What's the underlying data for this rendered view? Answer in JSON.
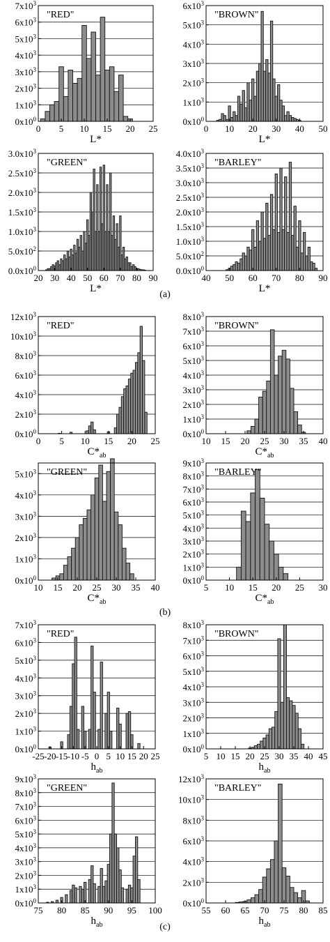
{
  "panel_labels": [
    "(a)",
    "(b)",
    "(c)"
  ],
  "chart_data": [
    {
      "type": "bar",
      "panel": "(a)",
      "title": "\"RED\"",
      "xlabel": "L*",
      "xlabel_sub": "",
      "xlim": [
        0,
        25
      ],
      "xticks": [
        0,
        5,
        10,
        15,
        20,
        25
      ],
      "ylim": [
        0,
        7000
      ],
      "yticks": [
        0,
        1000,
        2000,
        3000,
        4000,
        5000,
        6000,
        7000
      ],
      "ytick_labels": [
        "0x10^0",
        "1x10^3",
        "2x10^3",
        "3x10^3",
        "4x10^3",
        "5x10^3",
        "6x10^3",
        "7x10^3"
      ],
      "bin_width": 1,
      "x": [
        1,
        2,
        3,
        4,
        5,
        6,
        7,
        8,
        9,
        10,
        11,
        12,
        13,
        14,
        15,
        16,
        17,
        18,
        19,
        20
      ],
      "values": [
        150,
        600,
        1000,
        1200,
        3300,
        1500,
        3100,
        2300,
        2600,
        5800,
        3800,
        5400,
        2800,
        6300,
        3100,
        3300,
        1800,
        2800,
        300,
        150
      ]
    },
    {
      "type": "bar",
      "panel": "(a)",
      "title": "\"BROWN\"",
      "xlabel": "L*",
      "xlabel_sub": "",
      "xlim": [
        0,
        50
      ],
      "xticks": [
        0,
        10,
        20,
        30,
        40,
        50
      ],
      "ylim": [
        0,
        6000
      ],
      "yticks": [
        0,
        1000,
        2000,
        3000,
        4000,
        5000,
        6000
      ],
      "ytick_labels": [
        "0x10^0",
        "1x10^3",
        "2x10^3",
        "3x10^3",
        "4x10^3",
        "5x10^3",
        "6x10^3"
      ],
      "bin_width": 1,
      "x": [
        5,
        6,
        7,
        8,
        9,
        10,
        11,
        12,
        13,
        14,
        15,
        16,
        17,
        18,
        19,
        20,
        21,
        22,
        23,
        24,
        25,
        26,
        27,
        28,
        29,
        30,
        31,
        32,
        33,
        34,
        35,
        36,
        37,
        38,
        39,
        40
      ],
      "values": [
        50,
        100,
        400,
        300,
        100,
        800,
        200,
        500,
        300,
        1300,
        900,
        1600,
        700,
        2000,
        1100,
        2200,
        1300,
        2600,
        3000,
        5700,
        2600,
        3200,
        2500,
        5200,
        2200,
        1300,
        1900,
        1100,
        800,
        300,
        500,
        300,
        200,
        150,
        100,
        50
      ]
    },
    {
      "type": "bar",
      "panel": "(a)",
      "title": "\"GREEN\"",
      "xlabel": "L*",
      "xlabel_sub": "",
      "xlim": [
        20,
        90
      ],
      "xticks": [
        20,
        30,
        40,
        50,
        60,
        70,
        80,
        90
      ],
      "ylim": [
        0,
        3000
      ],
      "yticks": [
        0,
        500,
        1000,
        1500,
        2000,
        2500,
        3000
      ],
      "ytick_labels": [
        "0.0x10^0",
        "5.0x10^2",
        "1.0x10^3",
        "1.5x10^3",
        "2.0x10^3",
        "2.5x10^3",
        "3.0x10^3"
      ],
      "bin_width": 1,
      "x": [
        25,
        26,
        27,
        28,
        29,
        30,
        31,
        32,
        33,
        34,
        35,
        36,
        37,
        38,
        39,
        40,
        41,
        42,
        43,
        44,
        45,
        46,
        47,
        48,
        49,
        50,
        51,
        52,
        53,
        54,
        55,
        56,
        57,
        58,
        59,
        60,
        61,
        62,
        63,
        64,
        65,
        66,
        67,
        68,
        69,
        70,
        71,
        72,
        73,
        74,
        75,
        76,
        77,
        78,
        79,
        80,
        81,
        82,
        83,
        84,
        85
      ],
      "values": [
        20,
        50,
        50,
        100,
        150,
        120,
        200,
        250,
        150,
        300,
        250,
        400,
        300,
        500,
        350,
        550,
        400,
        650,
        450,
        800,
        600,
        900,
        500,
        1000,
        700,
        1300,
        900,
        2000,
        1500,
        2600,
        1000,
        2200,
        1000,
        2650,
        1200,
        2700,
        1000,
        2200,
        1000,
        2500,
        900,
        1400,
        800,
        1200,
        600,
        1400,
        400,
        600,
        300,
        350,
        200,
        200,
        100,
        150,
        100,
        50,
        50,
        30,
        20,
        20,
        10
      ]
    },
    {
      "type": "bar",
      "panel": "(a)",
      "title": "\"BARLEY\"",
      "xlabel": "L*",
      "xlabel_sub": "",
      "xlim": [
        40,
        90
      ],
      "xticks": [
        40,
        50,
        60,
        70,
        80,
        90
      ],
      "ylim": [
        0,
        4000
      ],
      "yticks": [
        0,
        500,
        1000,
        1500,
        2000,
        2500,
        3000,
        3500,
        4000
      ],
      "ytick_labels": [
        "0.0x10^0",
        "5.0x10^2",
        "1.0x10^3",
        "1.5x10^3",
        "2.0x10^3",
        "2.5x10^3",
        "3.0x10^3",
        "3.5x10^3",
        "4.0x10^3"
      ],
      "bin_width": 1,
      "x": [
        49,
        50,
        51,
        52,
        53,
        54,
        55,
        56,
        57,
        58,
        59,
        60,
        61,
        62,
        63,
        64,
        65,
        66,
        67,
        68,
        69,
        70,
        71,
        72,
        73,
        74,
        75,
        76,
        77,
        78,
        79,
        80,
        81,
        82,
        83,
        84,
        85,
        86,
        87
      ],
      "values": [
        30,
        80,
        150,
        200,
        300,
        250,
        400,
        600,
        500,
        800,
        700,
        1400,
        800,
        1700,
        1000,
        2000,
        1100,
        2300,
        1200,
        2600,
        1400,
        3300,
        1300,
        3500,
        1400,
        3200,
        1300,
        3700,
        1200,
        2200,
        800,
        1700,
        600,
        1300,
        500,
        800,
        300,
        250,
        80
      ]
    },
    {
      "type": "bar",
      "panel": "(b)",
      "title": "\"RED\"",
      "xlabel": "C*",
      "xlabel_sub": "ab",
      "xlim": [
        0,
        25
      ],
      "xticks": [
        0,
        5,
        10,
        15,
        20,
        25
      ],
      "ylim": [
        0,
        12000
      ],
      "yticks": [
        0,
        2000,
        4000,
        6000,
        8000,
        10000,
        12000
      ],
      "ytick_labels": [
        "0x10^0",
        "2x10^3",
        "4x10^3",
        "6x10^3",
        "8x10^3",
        "10x10^3",
        "12x10^3"
      ],
      "bin_width": 0.5,
      "x": [
        4.5,
        7.0,
        10.5,
        11.0,
        11.5,
        12.0,
        15.0,
        16.5,
        17.0,
        17.5,
        18.0,
        18.5,
        19.0,
        19.5,
        20.0,
        20.5,
        21.0,
        21.5,
        22.0,
        22.5,
        23.0
      ],
      "values": [
        40,
        150,
        300,
        800,
        1200,
        400,
        200,
        600,
        2000,
        2700,
        3800,
        4600,
        4900,
        5600,
        6200,
        6500,
        7300,
        8300,
        11000,
        7500,
        2200
      ]
    },
    {
      "type": "bar",
      "panel": "(b)",
      "title": "\"BROWN\"",
      "xlabel": "C*",
      "xlabel_sub": "ab",
      "xlim": [
        10,
        40
      ],
      "xticks": [
        10,
        15,
        20,
        25,
        30,
        35,
        40
      ],
      "ylim": [
        0,
        8000
      ],
      "yticks": [
        0,
        1000,
        2000,
        3000,
        4000,
        5000,
        6000,
        7000,
        8000
      ],
      "ytick_labels": [
        "0x10^0",
        "1x10^3",
        "2x10^3",
        "3x10^3",
        "4x10^3",
        "5x10^3",
        "6x10^3",
        "7x10^3",
        "8x10^3"
      ],
      "bin_width": 1,
      "x": [
        21,
        22,
        23,
        24,
        25,
        26,
        27,
        28,
        29,
        30,
        31,
        32,
        33,
        34,
        35
      ],
      "values": [
        200,
        500,
        1000,
        2500,
        2900,
        3600,
        7100,
        4000,
        5300,
        5700,
        5100,
        3100,
        1500,
        600,
        100
      ]
    },
    {
      "type": "bar",
      "panel": "(b)",
      "title": "\"GREEN\"",
      "xlabel": "C*",
      "xlabel_sub": "ab",
      "xlim": [
        10,
        40
      ],
      "xticks": [
        10,
        15,
        20,
        25,
        30,
        35,
        40
      ],
      "ylim": [
        0,
        5500
      ],
      "yticks": [
        0,
        1000,
        2000,
        3000,
        4000,
        5000
      ],
      "ytick_labels": [
        "0x10^0",
        "1x10^3",
        "2x10^3",
        "3x10^3",
        "4x10^3",
        "5x10^3"
      ],
      "bin_width": 1,
      "x": [
        14,
        15,
        16,
        17,
        18,
        19,
        20,
        21,
        22,
        23,
        24,
        25,
        26,
        27,
        28,
        29,
        30,
        31,
        32,
        33,
        34
      ],
      "values": [
        100,
        200,
        300,
        700,
        1100,
        1500,
        2000,
        2600,
        2900,
        3300,
        4000,
        4800,
        5400,
        3700,
        5100,
        5700,
        3200,
        2600,
        1500,
        800,
        300
      ]
    },
    {
      "type": "bar",
      "panel": "(b)",
      "title": "\"BARLEY\"",
      "xlabel": "C*",
      "xlabel_sub": "ab",
      "xlim": [
        5,
        30
      ],
      "xticks": [
        5,
        10,
        15,
        20,
        25,
        30
      ],
      "ylim": [
        0,
        9000
      ],
      "yticks": [
        0,
        1000,
        2000,
        3000,
        4000,
        5000,
        6000,
        7000,
        8000,
        9000
      ],
      "ytick_labels": [
        "0x10^0",
        "1x10^3",
        "2x10^3",
        "3x10^3",
        "4x10^3",
        "5x10^3",
        "6x10^3",
        "7x10^3",
        "8x10^3",
        "9x10^3"
      ],
      "bin_width": 1,
      "x": [
        12,
        13,
        14,
        15,
        16,
        17,
        18,
        19,
        20,
        21,
        22
      ],
      "values": [
        1000,
        5300,
        4500,
        6700,
        8500,
        6300,
        4300,
        3000,
        2000,
        1000,
        500
      ]
    },
    {
      "type": "bar",
      "panel": "(c)",
      "title": "\"RED\"",
      "xlabel": "h",
      "xlabel_sub": "ab",
      "xlim": [
        -25,
        25
      ],
      "xticks": [
        -25,
        -20,
        -15,
        -10,
        -5,
        0,
        5,
        10,
        15,
        20,
        25
      ],
      "ylim": [
        0,
        7000
      ],
      "yticks": [
        0,
        1000,
        2000,
        3000,
        4000,
        5000,
        6000,
        7000
      ],
      "ytick_labels": [
        "0x10^0",
        "1x10^3",
        "2x10^3",
        "3x10^3",
        "4x10^3",
        "5x10^3",
        "6x10^3",
        "7x10^3"
      ],
      "bin_width": 1,
      "x": [
        -20,
        -15,
        -12,
        -11,
        -10,
        -9,
        -8,
        -6,
        -5,
        -3,
        -2,
        -1,
        1,
        2,
        4,
        5,
        6,
        9,
        10,
        13,
        14,
        15,
        18
      ],
      "values": [
        100,
        400,
        800,
        2400,
        4800,
        6300,
        1100,
        2400,
        1000,
        1100,
        5800,
        3200,
        1100,
        4900,
        2000,
        3200,
        1000,
        2300,
        1400,
        2000,
        2100,
        800,
        300
      ]
    },
    {
      "type": "bar",
      "panel": "(c)",
      "title": "\"BROWN\"",
      "xlabel": "h",
      "xlabel_sub": "ab",
      "xlim": [
        5,
        45
      ],
      "xticks": [
        5,
        10,
        15,
        20,
        25,
        30,
        35,
        40,
        45
      ],
      "ylim": [
        0,
        8000
      ],
      "yticks": [
        0,
        1000,
        2000,
        3000,
        4000,
        5000,
        6000,
        7000,
        8000
      ],
      "ytick_labels": [
        "0x10^0",
        "1x10^3",
        "2x10^3",
        "3x10^3",
        "4x10^3",
        "5x10^3",
        "6x10^3",
        "7x10^3",
        "8x10^3"
      ],
      "bin_width": 1,
      "x": [
        20,
        21,
        22,
        23,
        24,
        25,
        26,
        27,
        28,
        29,
        30,
        31,
        32,
        33,
        34,
        35,
        36,
        37,
        38
      ],
      "values": [
        50,
        100,
        200,
        300,
        500,
        700,
        900,
        1300,
        1400,
        2400,
        7100,
        3000,
        8000,
        3300,
        3100,
        2800,
        2300,
        1300,
        300
      ]
    },
    {
      "type": "bar",
      "panel": "(c)",
      "title": "\"GREEN\"",
      "xlabel": "h",
      "xlabel_sub": "ab",
      "xlim": [
        75,
        100
      ],
      "xticks": [
        75,
        80,
        85,
        90,
        95,
        100
      ],
      "ylim": [
        0,
        9000
      ],
      "yticks": [
        0,
        1000,
        2000,
        3000,
        4000,
        5000,
        6000,
        7000,
        8000,
        9000
      ],
      "ytick_labels": [
        "0x10^0",
        "1x10^3",
        "2x10^3",
        "3x10^3",
        "4x10^3",
        "5x10^3",
        "6x10^3",
        "7x10^3",
        "8x10^3",
        "9x10^3"
      ],
      "bin_width": 0.5,
      "x": [
        77.0,
        78.0,
        79.0,
        80.0,
        81.0,
        82.0,
        82.5,
        83.0,
        84.0,
        84.5,
        85.0,
        86.0,
        86.5,
        87.0,
        88.0,
        88.5,
        89.0,
        89.5,
        90.0,
        90.5,
        91.0,
        91.5,
        92.0,
        92.5,
        93.0,
        94.0,
        94.5,
        95.0,
        95.5,
        96.0,
        96.5
      ],
      "values": [
        50,
        100,
        200,
        400,
        600,
        900,
        1300,
        1100,
        1200,
        1000,
        1500,
        1700,
        2700,
        1400,
        1200,
        2500,
        1200,
        1600,
        2800,
        5000,
        8700,
        5000,
        4000,
        2400,
        1100,
        1000,
        1300,
        1100,
        3400,
        4800,
        1700
      ]
    },
    {
      "type": "bar",
      "panel": "(c)",
      "title": "\"BARLEY\"",
      "xlabel": "h",
      "xlabel_sub": "ab",
      "xlim": [
        55,
        85
      ],
      "xticks": [
        55,
        60,
        65,
        70,
        75,
        80,
        85
      ],
      "ylim": [
        0,
        12000
      ],
      "yticks": [
        0,
        2000,
        4000,
        6000,
        8000,
        10000,
        12000
      ],
      "ytick_labels": [
        "0x10^0",
        "2x10^3",
        "4x10^3",
        "6x10^3",
        "8x10^3",
        "10x10^3",
        "12x10^3"
      ],
      "bin_width": 1,
      "x": [
        63,
        64,
        65,
        66,
        67,
        68,
        69,
        70,
        71,
        72,
        73,
        74,
        75,
        76,
        77,
        78,
        79,
        80,
        81
      ],
      "values": [
        50,
        100,
        150,
        300,
        500,
        800,
        1300,
        2500,
        3300,
        4200,
        6000,
        11500,
        3400,
        2600,
        1500,
        1000,
        500,
        1200,
        200
      ]
    }
  ]
}
